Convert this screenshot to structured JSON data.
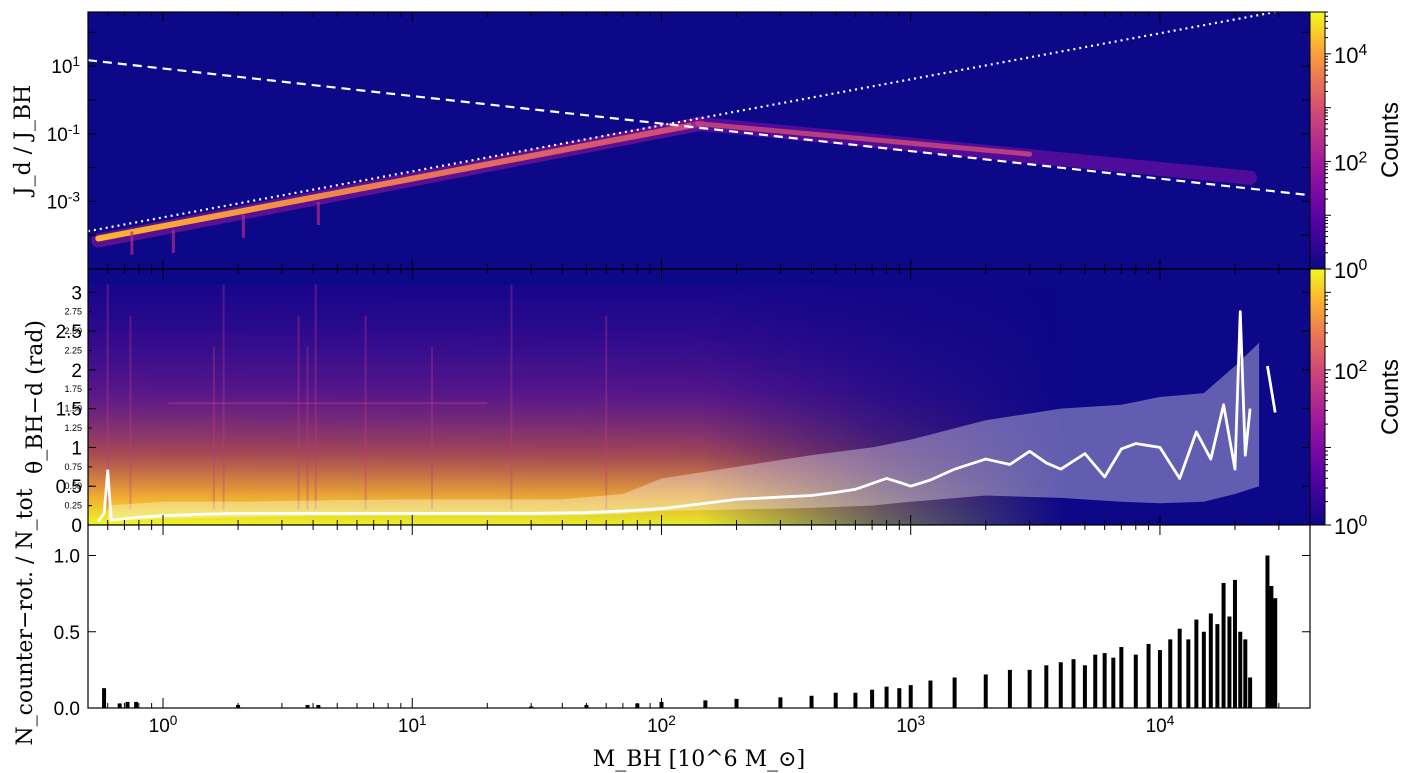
{
  "chart_data": [
    {
      "panel": "top",
      "type": "heatmap",
      "ylabel": "J_d / J_BH",
      "x_scale": "log",
      "y_scale": "log",
      "xlim": [
        0.5,
        40000
      ],
      "ylim": [
        1e-05,
        400
      ],
      "ytick_labels": [
        "10^-3",
        "10^-1",
        "10^1"
      ],
      "ytick_values": [
        0.001,
        0.1,
        10
      ],
      "colorbar": {
        "label": "Counts",
        "scale": "log",
        "range": [
          1,
          60000
        ],
        "tick_labels": [
          "10^0",
          "10^2",
          "10^4"
        ],
        "tick_values": [
          1,
          100,
          10000
        ]
      },
      "colormap": "plasma",
      "lines": [
        {
          "style": "dashed",
          "color": "#ffffff",
          "x": [
            0.5,
            40000
          ],
          "y": [
            15,
            0.00152
          ]
        },
        {
          "style": "dotted",
          "color": "#ffffff",
          "x": [
            0.5,
            29000
          ],
          "y": [
            0.000131,
            400
          ]
        }
      ]
    },
    {
      "panel": "middle",
      "type": "heatmap",
      "ylabel": "θ_BH−d (rad)",
      "x_scale": "log",
      "ylim": [
        0,
        3.3
      ],
      "ytick_major_labels": [
        "0",
        "0.5",
        "1",
        "1.5",
        "2",
        "2.5",
        "3"
      ],
      "ytick_major_values": [
        0,
        0.5,
        1,
        1.5,
        2,
        2.5,
        3
      ],
      "ytick_minor_labels": [
        "0.25",
        "0.50",
        "0.75",
        "1.25",
        "1.50",
        "1.75",
        "2.25",
        "2.50",
        "2.75"
      ],
      "ytick_minor_values": [
        0.25,
        0.5,
        0.75,
        1.25,
        1.5,
        1.75,
        2.25,
        2.5,
        2.75
      ],
      "colorbar": {
        "label": "Counts",
        "scale": "log",
        "range": [
          1,
          2000
        ],
        "tick_labels": [
          "10^0",
          "10^2"
        ],
        "tick_values": [
          1,
          100
        ]
      },
      "colormap": "plasma",
      "median_line": {
        "color": "#ffffff",
        "x": [
          0.55,
          0.58,
          0.6,
          0.62,
          0.7,
          0.8,
          1,
          1.5,
          2,
          5,
          10,
          20,
          30,
          50,
          70,
          100,
          150,
          200,
          300,
          400,
          500,
          600,
          800,
          900,
          1000,
          1200,
          1500,
          2000,
          2500,
          3000,
          3500,
          4000,
          5000,
          6000,
          7000,
          8000,
          10000,
          12000,
          14000,
          16000,
          18000,
          20000,
          21000,
          22000,
          23000
        ],
        "y": [
          0.05,
          0.15,
          0.7,
          0.06,
          0.08,
          0.1,
          0.12,
          0.14,
          0.15,
          0.15,
          0.15,
          0.15,
          0.15,
          0.16,
          0.18,
          0.21,
          0.28,
          0.33,
          0.36,
          0.38,
          0.42,
          0.46,
          0.6,
          0.55,
          0.5,
          0.58,
          0.72,
          0.85,
          0.78,
          0.95,
          0.8,
          0.72,
          0.92,
          0.62,
          0.98,
          1.05,
          1.0,
          0.6,
          1.2,
          0.85,
          1.55,
          0.72,
          2.75,
          0.9,
          1.5
        ]
      },
      "median_line_tail": {
        "x": [
          27000,
          29000
        ],
        "y": [
          2.05,
          1.45
        ]
      },
      "band_upper": [
        0.25,
        0.3,
        0.3,
        0.32,
        0.33,
        0.33,
        0.33,
        0.4,
        0.6,
        0.75,
        0.9,
        1.0,
        1.1,
        1.35,
        1.5,
        1.55,
        1.65,
        1.7,
        2.05,
        2.35
      ],
      "band_lower": [
        0.05,
        0.08,
        0.1,
        0.12,
        0.12,
        0.12,
        0.12,
        0.14,
        0.18,
        0.2,
        0.22,
        0.25,
        0.3,
        0.38,
        0.35,
        0.3,
        0.28,
        0.3,
        0.4,
        0.5
      ],
      "band_x": [
        0.6,
        1,
        2,
        5,
        10,
        20,
        40,
        70,
        100,
        200,
        400,
        700,
        1000,
        2000,
        4000,
        7000,
        10000,
        15000,
        20000,
        25000
      ]
    },
    {
      "panel": "bottom",
      "type": "bar",
      "ylabel": "N_counter−rot. / N_tot",
      "xlabel": "M_BH [10^6 M_⊙]",
      "x_scale": "log",
      "xlim": [
        0.5,
        40000
      ],
      "ylim": [
        0,
        1.2
      ],
      "ytick_labels": [
        "0.0",
        "0.5",
        "1.0"
      ],
      "ytick_values": [
        0,
        0.5,
        1.0
      ],
      "xtick_labels": [
        "10^0",
        "10^1",
        "10^2",
        "10^3",
        "10^4"
      ],
      "xtick_values": [
        1,
        10,
        100,
        1000,
        10000
      ],
      "bars": {
        "x": [
          0.58,
          0.67,
          0.72,
          0.78,
          2.0,
          3.8,
          4.2,
          30,
          50,
          80,
          100,
          150,
          200,
          300,
          400,
          500,
          600,
          700,
          800,
          900,
          1000,
          1200,
          1500,
          2000,
          2500,
          3000,
          3500,
          4000,
          4500,
          5000,
          5500,
          6000,
          6500,
          7000,
          8000,
          9000,
          10000,
          11000,
          12000,
          13000,
          14000,
          15000,
          16000,
          17000,
          18000,
          19000,
          20000,
          21000,
          22000,
          23000,
          27000,
          28000,
          29000
        ],
        "y": [
          0.13,
          0.03,
          0.04,
          0.04,
          0.02,
          0.02,
          0.02,
          0.01,
          0.02,
          0.03,
          0.04,
          0.05,
          0.06,
          0.07,
          0.08,
          0.1,
          0.1,
          0.12,
          0.14,
          0.13,
          0.15,
          0.18,
          0.2,
          0.22,
          0.25,
          0.25,
          0.28,
          0.3,
          0.32,
          0.28,
          0.35,
          0.36,
          0.33,
          0.4,
          0.35,
          0.42,
          0.38,
          0.45,
          0.52,
          0.45,
          0.58,
          0.5,
          0.62,
          0.55,
          0.82,
          0.6,
          0.84,
          0.5,
          0.45,
          0.2,
          1.0,
          0.8,
          0.72
        ]
      }
    }
  ]
}
